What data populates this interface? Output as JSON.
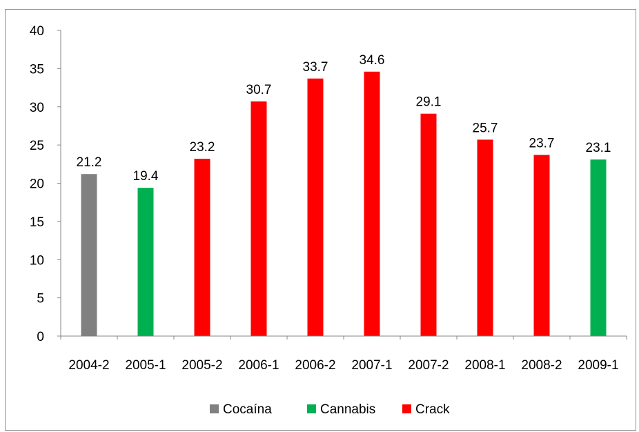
{
  "chart_data": {
    "type": "bar",
    "categories": [
      "2004-2",
      "2005-1",
      "2005-2",
      "2006-1",
      "2006-2",
      "2007-1",
      "2007-2",
      "2008-1",
      "2008-2",
      "2009-1"
    ],
    "values": [
      21.2,
      19.4,
      23.2,
      30.7,
      33.7,
      34.6,
      29.1,
      25.7,
      23.7,
      23.1
    ],
    "labels": [
      "21.2",
      "19.4",
      "23.2",
      "30.7",
      "33.7",
      "34.6",
      "29.1",
      "25.7",
      "23.7",
      "23.1"
    ],
    "bar_series": [
      "Cocaína",
      "Cannabis",
      "Crack",
      "Crack",
      "Crack",
      "Crack",
      "Crack",
      "Crack",
      "Crack",
      "Cannabis"
    ],
    "series": [
      {
        "name": "Cocaína",
        "color": "#808080"
      },
      {
        "name": "Cannabis",
        "color": "#00b050"
      },
      {
        "name": "Crack",
        "color": "#ff0000"
      }
    ],
    "ylim": [
      0,
      40
    ],
    "yticks": [
      "0",
      "5",
      "10",
      "15",
      "20",
      "25",
      "30",
      "35",
      "40"
    ],
    "title": "",
    "xlabel": "",
    "ylabel": "",
    "legend": "bottom",
    "grid": false
  }
}
